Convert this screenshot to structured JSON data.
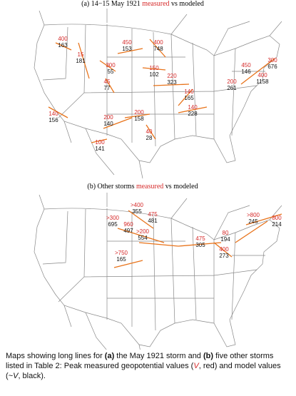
{
  "panels": [
    {
      "title": {
        "prefix": "(a) 14−15 May 1921",
        "measured": "measured",
        "suffix": "vs modeled"
      },
      "labels": [
        {
          "measured": 400,
          "modeled": 163
        },
        {
          "measured": 15,
          "modeled": 181
        },
        {
          "measured": 300,
          "modeled": 55
        },
        {
          "measured": 450,
          "modeled": 153
        },
        {
          "measured": 400,
          "modeled": 748
        },
        {
          "measured": 150,
          "modeled": 102
        },
        {
          "measured": 220,
          "modeled": 323
        },
        {
          "measured": 45,
          "modeled": 77
        },
        {
          "measured": 140,
          "modeled": 156
        },
        {
          "measured": 450,
          "modeled": 146
        },
        {
          "measured": 300,
          "modeled": 676
        },
        {
          "measured": 200,
          "modeled": 261
        },
        {
          "measured": 400,
          "modeled": 1158
        },
        {
          "measured": 140,
          "modeled": 165
        },
        {
          "measured": 140,
          "modeled": 228
        },
        {
          "measured": 200,
          "modeled": 140
        },
        {
          "measured": 200,
          "modeled": 158
        },
        {
          "measured": 40,
          "modeled": 28
        },
        {
          "measured": 100,
          "modeled": 141
        }
      ]
    },
    {
      "title": {
        "prefix": "(b) Other storms",
        "measured": "measured",
        "suffix": "vs modeled"
      },
      "labels": [
        {
          "measured": ">400",
          "modeled": 355
        },
        {
          "measured": 475,
          "modeled": 481
        },
        {
          "measured": ">300",
          "modeled": 695
        },
        {
          "measured": 960,
          "modeled": 497
        },
        {
          "measured": ">200",
          "modeled": 554
        },
        {
          "measured": ">750",
          "modeled": 165
        },
        {
          "measured": 475,
          "modeled": 305
        },
        {
          "measured": ">800",
          "modeled": 245
        },
        {
          "measured": 800,
          "modeled": 214
        },
        {
          "measured": 80,
          "modeled": 194
        },
        {
          "measured": 400,
          "modeled": 273
        }
      ]
    }
  ],
  "caption": {
    "t1": "Maps showing long lines for ",
    "b1": "(a)",
    "t2": " the May 1921 storm and ",
    "b2": "(b)",
    "t3": " five other storms listed in Table 2: Peak measured geopotential values (",
    "v1": "V",
    "t4": ", red) and model values (",
    "v2": "~V",
    "t5": ", black)."
  }
}
